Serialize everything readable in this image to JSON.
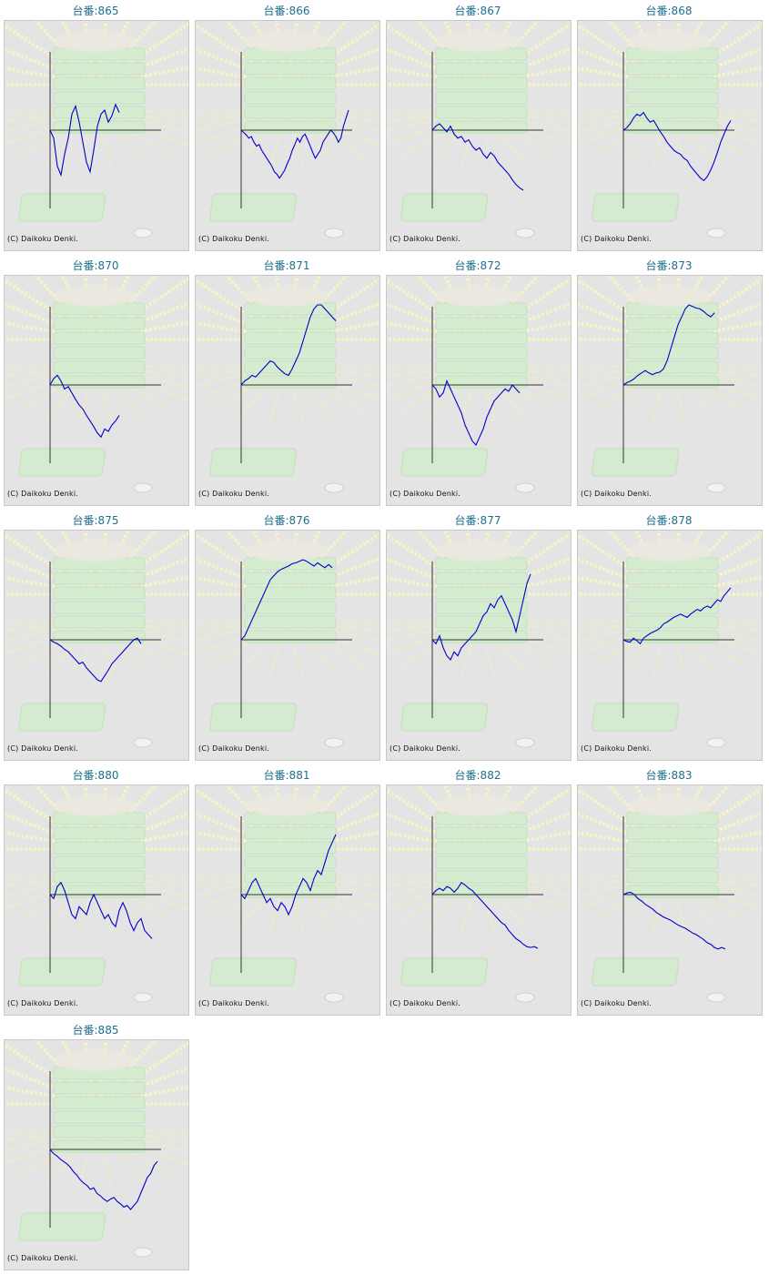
{
  "title_prefix": "台番:",
  "copyright": "(C) Daikoku Denki.",
  "colors": {
    "title": "#1f6f8f",
    "line": "#0000cc",
    "axis": "#333333",
    "background": "#e4e4e4"
  },
  "chart_data": [
    {
      "type": "line",
      "title": "台番:865",
      "values": [
        0,
        -10,
        -45,
        -56,
        -30,
        -10,
        20,
        30,
        10,
        -15,
        -40,
        -52,
        -25,
        5,
        20,
        25,
        10,
        18,
        32,
        22
      ]
    },
    {
      "type": "line",
      "title": "台番:866",
      "values": [
        0,
        -3,
        -6,
        -10,
        -8,
        -15,
        -20,
        -18,
        -25,
        -30,
        -35,
        -40,
        -45,
        -52,
        -55,
        -60,
        -55,
        -50,
        -42,
        -35,
        -25,
        -18,
        -10,
        -15,
        -8,
        -5,
        -12,
        -20,
        -28,
        -35,
        -30,
        -25,
        -15,
        -10,
        -5,
        0,
        -3,
        -8,
        -15,
        -10,
        5,
        15,
        25
      ]
    },
    {
      "type": "line",
      "title": "台番:867",
      "values": [
        0,
        5,
        8,
        3,
        -2,
        5,
        -5,
        -10,
        -8,
        -15,
        -12,
        -20,
        -25,
        -22,
        -30,
        -35,
        -28,
        -32,
        -40,
        -45,
        -50,
        -55,
        -62,
        -68,
        -72,
        -75
      ]
    },
    {
      "type": "line",
      "title": "台番:868",
      "values": [
        0,
        3,
        8,
        15,
        20,
        18,
        22,
        15,
        10,
        12,
        5,
        -2,
        -8,
        -15,
        -20,
        -25,
        -28,
        -30,
        -35,
        -38,
        -45,
        -50,
        -55,
        -60,
        -63,
        -58,
        -50,
        -40,
        -28,
        -15,
        -5,
        5,
        12
      ]
    },
    {
      "type": "line",
      "title": "台番:870",
      "values": [
        0,
        8,
        12,
        5,
        -5,
        -2,
        -10,
        -18,
        -25,
        -30,
        -38,
        -45,
        -52,
        -60,
        -65,
        -55,
        -58,
        -50,
        -45,
        -38
      ]
    },
    {
      "type": "line",
      "title": "台番:871",
      "values": [
        0,
        5,
        8,
        12,
        10,
        15,
        20,
        25,
        30,
        28,
        22,
        18,
        14,
        12,
        20,
        30,
        40,
        55,
        70,
        85,
        95,
        100,
        105,
        95,
        90,
        85,
        80
      ]
    },
    {
      "type": "line",
      "title": "台番:872",
      "values": [
        0,
        -5,
        -15,
        -10,
        5,
        -5,
        -15,
        -25,
        -35,
        -50,
        -60,
        -70,
        -75,
        -65,
        -55,
        -40,
        -30,
        -20,
        -15,
        -10,
        -5,
        -8,
        0,
        -5,
        -10
      ]
    },
    {
      "type": "line",
      "title": "台番:873",
      "values": [
        0,
        3,
        5,
        8,
        12,
        15,
        18,
        15,
        13,
        15,
        16,
        20,
        30,
        45,
        60,
        75,
        85,
        95,
        100,
        98,
        96,
        95,
        92,
        88,
        85,
        90
      ]
    },
    {
      "type": "line",
      "title": "台番:875",
      "values": [
        0,
        -3,
        -5,
        -8,
        -12,
        -15,
        -20,
        -25,
        -30,
        -28,
        -35,
        -40,
        -45,
        -50,
        -52,
        -45,
        -38,
        -30,
        -25,
        -20,
        -15,
        -10,
        -5,
        0,
        2,
        -5
      ]
    },
    {
      "type": "line",
      "title": "台番:876",
      "values": [
        0,
        5,
        15,
        25,
        35,
        45,
        55,
        65,
        75,
        80,
        85,
        88,
        90,
        92,
        95,
        96,
        98,
        100,
        98,
        95,
        92,
        96,
        93,
        90,
        94,
        90
      ]
    },
    {
      "type": "line",
      "title": "台番:877",
      "values": [
        0,
        -5,
        5,
        -10,
        -20,
        -25,
        -15,
        -20,
        -10,
        -5,
        0,
        5,
        10,
        20,
        30,
        35,
        45,
        40,
        50,
        55,
        45,
        35,
        25,
        10,
        30,
        50,
        70,
        82
      ]
    },
    {
      "type": "line",
      "title": "台番:878",
      "values": [
        0,
        -2,
        -3,
        2,
        -1,
        -5,
        2,
        5,
        8,
        10,
        12,
        15,
        20,
        22,
        25,
        28,
        30,
        32,
        30,
        28,
        32,
        35,
        38,
        36,
        40,
        42,
        40,
        45,
        50,
        48,
        55,
        60,
        65
      ]
    },
    {
      "type": "line",
      "title": "台番:880",
      "values": [
        0,
        -5,
        10,
        15,
        5,
        -10,
        -25,
        -30,
        -15,
        -20,
        -25,
        -10,
        0,
        -10,
        -20,
        -30,
        -25,
        -35,
        -40,
        -20,
        -10,
        -20,
        -35,
        -45,
        -35,
        -30,
        -45,
        -50,
        -55
      ]
    },
    {
      "type": "line",
      "title": "台番:881",
      "values": [
        0,
        -5,
        5,
        15,
        20,
        10,
        0,
        -10,
        -5,
        -15,
        -20,
        -10,
        -15,
        -25,
        -15,
        0,
        10,
        20,
        15,
        5,
        20,
        30,
        25,
        40,
        55,
        65,
        75
      ]
    },
    {
      "type": "line",
      "title": "台番:882",
      "values": [
        0,
        5,
        8,
        5,
        10,
        8,
        3,
        8,
        15,
        12,
        8,
        5,
        0,
        -5,
        -10,
        -15,
        -20,
        -25,
        -30,
        -35,
        -38,
        -45,
        -50,
        -55,
        -58,
        -62,
        -65,
        -66,
        -65,
        -67
      ]
    },
    {
      "type": "line",
      "title": "台番:883",
      "values": [
        0,
        2,
        3,
        0,
        -5,
        -8,
        -12,
        -15,
        -18,
        -22,
        -25,
        -28,
        -30,
        -32,
        -35,
        -38,
        -40,
        -42,
        -45,
        -48,
        -50,
        -53,
        -56,
        -60,
        -62,
        -66,
        -68,
        -66,
        -68
      ]
    },
    {
      "type": "line",
      "title": "台番:885",
      "values": [
        0,
        -5,
        -8,
        -12,
        -15,
        -18,
        -22,
        -28,
        -32,
        -38,
        -42,
        -45,
        -50,
        -48,
        -55,
        -58,
        -62,
        -65,
        -62,
        -60,
        -65,
        -68,
        -72,
        -70,
        -75,
        -70,
        -65,
        -55,
        -45,
        -35,
        -30,
        -20,
        -15
      ]
    }
  ]
}
